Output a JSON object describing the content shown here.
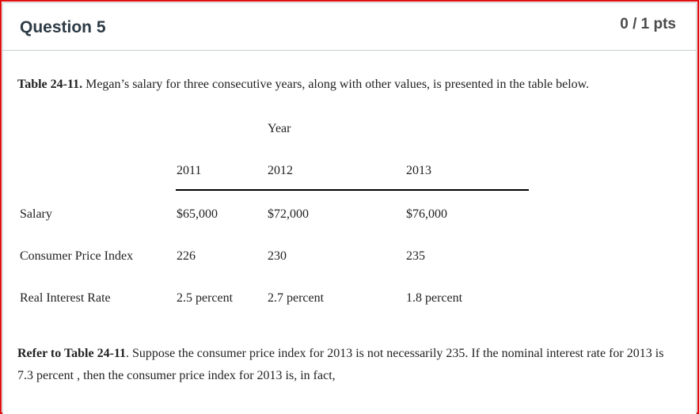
{
  "question": {
    "title": "Question 5",
    "points": "0 / 1 pts"
  },
  "intro": {
    "table_ref": "Table 24-11.",
    "text": " Megan’s salary for three consecutive years, along with other values, is presented in the table below."
  },
  "table": {
    "group_header": "Year",
    "columns": [
      "2011",
      "2012",
      "2013"
    ],
    "rows": [
      {
        "label": "Salary",
        "values": [
          "$65,000",
          "$72,000",
          "$76,000"
        ]
      },
      {
        "label": "Consumer Price Index",
        "values": [
          "226",
          "230",
          "235"
        ]
      },
      {
        "label": "Real Interest Rate",
        "values": [
          "2.5 percent",
          "2.7 percent",
          "1.8 percent"
        ]
      }
    ]
  },
  "prompt": {
    "ref": "Refer to Table 24-11",
    "text": ". Suppose the consumer price index for 2013 is not necessarily 235. If the nominal interest rate for 2013 is 7.3 percent , then the consumer price index for 2013 is, in fact,"
  },
  "colors": {
    "frame_border": "#e01010",
    "card_border": "#c7cdd1",
    "title_color": "#2d3b45"
  }
}
